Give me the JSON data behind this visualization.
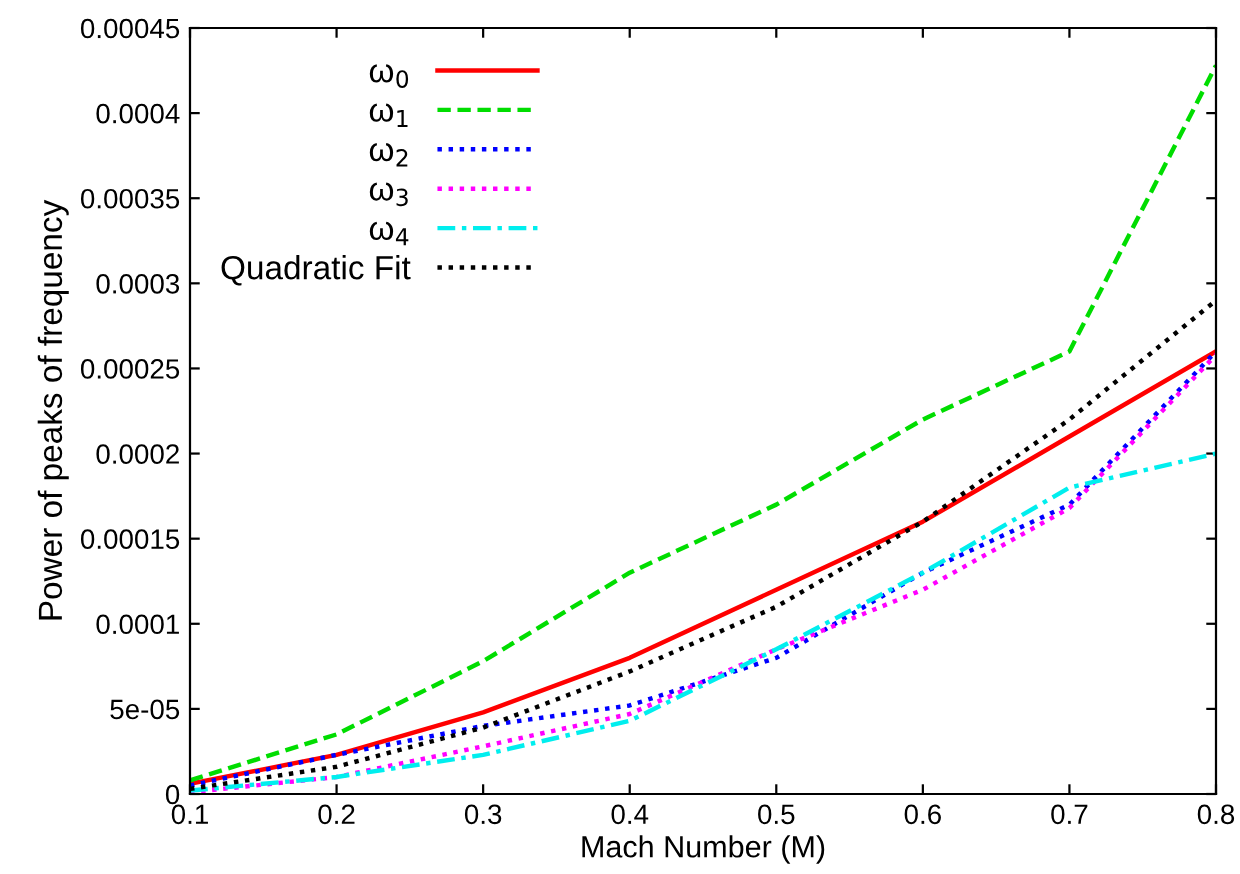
{
  "chart_data": {
    "type": "line",
    "xlabel": "Mach Number (M)",
    "ylabel": "Power of peaks of frequency",
    "x": [
      0.1,
      0.2,
      0.3,
      0.4,
      0.5,
      0.6,
      0.7,
      0.8
    ],
    "series": [
      {
        "name": "ω$_{0}$",
        "color": "#ff0000",
        "line_style": "solid",
        "values": [
          6e-06,
          2.3e-05,
          4.8e-05,
          8e-05,
          0.00012,
          0.00016,
          0.00021,
          0.00026
        ]
      },
      {
        "name": "ω$_{1}$",
        "color": "#00dd00",
        "line_style": "dashed",
        "values": [
          8e-06,
          3.5e-05,
          7.8e-05,
          0.00013,
          0.00017,
          0.00022,
          0.00026,
          0.000428
        ]
      },
      {
        "name": "ω$_{2}$",
        "color": "#0000ff",
        "line_style": "dotted",
        "values": [
          5e-06,
          2.3e-05,
          4e-05,
          5.2e-05,
          8e-05,
          0.00013,
          0.00017,
          0.00026
        ]
      },
      {
        "name": "ω$_{3}$",
        "color": "#ff00ff",
        "line_style": "dotted",
        "values": [
          1e-06,
          1e-05,
          2.8e-05,
          4.7e-05,
          8.5e-05,
          0.00012,
          0.000168,
          0.000258
        ]
      },
      {
        "name": "ω$_{4}$",
        "color": "#00eeee",
        "line_style": "dashdot",
        "values": [
          2e-06,
          1e-05,
          2.3e-05,
          4.3e-05,
          8.5e-05,
          0.00013,
          0.00018,
          0.0002
        ]
      },
      {
        "name": "Quadratic Fit",
        "color": "#000000",
        "line_style": "dotted",
        "x": [
          0.1,
          0.2,
          0.3,
          0.4,
          0.5,
          0.6,
          0.7,
          0.8
        ],
        "values": [
          3e-06,
          1.6e-05,
          3.9e-05,
          7.2e-05,
          0.00011,
          0.00016,
          0.00022,
          0.00029
        ]
      }
    ],
    "xlim": [
      0.1,
      0.8
    ],
    "xticks": [
      0.1,
      0.2,
      0.3,
      0.4,
      0.5,
      0.6,
      0.7,
      0.8
    ],
    "ylim": [
      0,
      0.00045
    ],
    "yticks": [
      0,
      {
        "value": 5e-05,
        "label": "5e-05"
      },
      0.0001,
      0.00015,
      0.0002,
      0.00025,
      0.0003,
      0.00035,
      0.0004,
      0.00045
    ],
    "grid": false,
    "legend": "top left",
    "marker": "none"
  }
}
